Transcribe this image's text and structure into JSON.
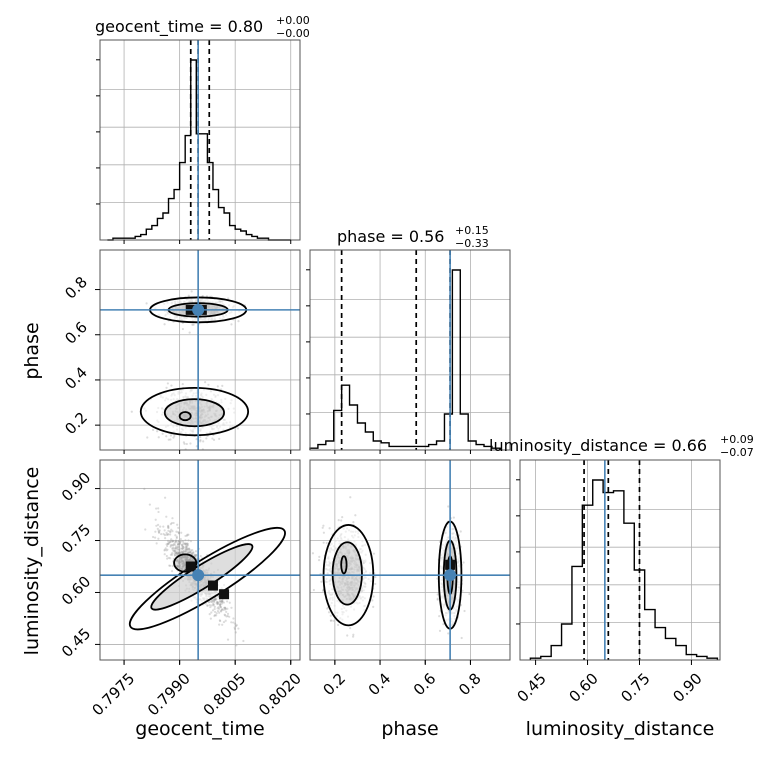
{
  "chart_data": {
    "type": "corner",
    "parameters": [
      "geocent_time",
      "phase",
      "luminosity_distance"
    ],
    "axis_labels": {
      "geocent_time": "geocent_time",
      "phase": "phase",
      "luminosity_distance": "luminosity_distance"
    },
    "titles": {
      "geocent_time": {
        "label": "geocent_time",
        "median": "0.80",
        "plus": "+0.00",
        "minus": "−0.00"
      },
      "phase": {
        "label": "phase",
        "median": "0.56",
        "plus": "+0.15",
        "minus": "−0.33"
      },
      "luminosity_distance": {
        "label": "luminosity_distance",
        "median": "0.66",
        "plus": "+0.09",
        "minus": "−0.07"
      }
    },
    "ranges": {
      "geocent_time": [
        0.79685,
        0.80225
      ],
      "phase": [
        0.09,
        0.975
      ],
      "luminosity_distance": [
        0.405,
        0.9825
      ]
    },
    "ticks": {
      "geocent_time": [
        0.7975,
        0.799,
        0.8005,
        0.802
      ],
      "phase": [
        0.2,
        0.4,
        0.6,
        0.8
      ],
      "luminosity_distance": [
        0.45,
        0.6,
        0.75,
        0.9
      ]
    },
    "tick_labels": {
      "geocent_time": [
        "0.7975",
        "0.7990",
        "0.8005",
        "0.8020"
      ],
      "phase": [
        "0.2",
        "0.4",
        "0.6",
        "0.8"
      ],
      "luminosity_distance": [
        "0.45",
        "0.60",
        "0.75",
        "0.90"
      ]
    },
    "truths": {
      "geocent_time": 0.7995,
      "phase": 0.71,
      "luminosity_distance": 0.65
    },
    "quantiles": {
      "geocent_time": [
        0.7993,
        0.7995,
        0.7998
      ],
      "phase": [
        0.23,
        0.56,
        0.71
      ],
      "luminosity_distance": [
        0.59,
        0.66,
        0.75
      ]
    },
    "histograms": {
      "geocent_time": {
        "bin_edges": [
          0.79705,
          0.7972,
          0.79735,
          0.7975,
          0.79765,
          0.7978,
          0.79795,
          0.7981,
          0.79825,
          0.7984,
          0.79855,
          0.7987,
          0.79885,
          0.799,
          0.79915,
          0.7993,
          0.79945,
          0.7996,
          0.79975,
          0.7999,
          0.80005,
          0.8002,
          0.80035,
          0.8005,
          0.80065,
          0.8008,
          0.80095,
          0.8011,
          0.80125,
          0.8014,
          0.80155,
          0.8017,
          0.80185,
          0.802
        ],
        "counts": [
          0,
          0.01,
          0.01,
          0.01,
          0.01,
          0.02,
          0.03,
          0.06,
          0.08,
          0.12,
          0.15,
          0.23,
          0.28,
          0.43,
          0.58,
          1.0,
          0.59,
          0.59,
          0.43,
          0.28,
          0.18,
          0.15,
          0.08,
          0.06,
          0.05,
          0.03,
          0.02,
          0.01,
          0.01,
          0,
          0,
          0,
          0
        ]
      },
      "phase": {
        "bin_edges": [
          0.09,
          0.125,
          0.16,
          0.195,
          0.23,
          0.265,
          0.3,
          0.335,
          0.37,
          0.405,
          0.44,
          0.475,
          0.51,
          0.545,
          0.58,
          0.615,
          0.65,
          0.685,
          0.72,
          0.755,
          0.79,
          0.825,
          0.86,
          0.895,
          0.93
        ],
        "counts": [
          0.01,
          0.03,
          0.05,
          0.22,
          0.36,
          0.25,
          0.15,
          0.1,
          0.05,
          0.04,
          0.02,
          0.02,
          0.02,
          0.02,
          0.02,
          0.03,
          0.05,
          0.2,
          1.0,
          0.2,
          0.05,
          0.03,
          0.02,
          0.01
        ]
      },
      "luminosity_distance": {
        "bin_edges": [
          0.435,
          0.465,
          0.495,
          0.525,
          0.555,
          0.585,
          0.615,
          0.645,
          0.675,
          0.705,
          0.735,
          0.765,
          0.795,
          0.825,
          0.855,
          0.885,
          0.915,
          0.945,
          0.975
        ],
        "counts": [
          0.01,
          0.02,
          0.08,
          0.2,
          0.52,
          0.86,
          1.0,
          0.93,
          0.94,
          0.76,
          0.5,
          0.28,
          0.18,
          0.12,
          0.08,
          0.03,
          0.02,
          0.01
        ]
      }
    },
    "samples": {
      "phase_vs_geocent_time": {
        "clusters": [
          {
            "x": 0.7995,
            "y": 0.71,
            "sx": 0.0004,
            "sy": 0.025,
            "n": 600,
            "rho": 0
          },
          {
            "x": 0.7994,
            "y": 0.25,
            "sx": 0.00045,
            "sy": 0.06,
            "n": 500,
            "rho": 0
          }
        ],
        "contours": [
          {
            "cx": 0.7995,
            "cy": 0.71,
            "rx": 0.0013,
            "ry": 0.055,
            "rot": 0
          },
          {
            "cx": 0.7995,
            "cy": 0.71,
            "rx": 0.0008,
            "ry": 0.03,
            "rot": 0
          },
          {
            "cx": 0.7994,
            "cy": 0.26,
            "rx": 0.00145,
            "ry": 0.105,
            "rot": 0
          },
          {
            "cx": 0.7994,
            "cy": 0.255,
            "rx": 0.0008,
            "ry": 0.06,
            "rot": 0
          },
          {
            "cx": 0.79915,
            "cy": 0.24,
            "rx": 0.00015,
            "ry": 0.018,
            "rot": 0
          }
        ],
        "density_marks": [
          {
            "x": 0.7993,
            "y": 0.71
          },
          {
            "x": 0.7996,
            "y": 0.71
          }
        ]
      },
      "luminosity_distance_vs_geocent_time": {
        "clusters": [
          {
            "x": 0.7994,
            "y": 0.66,
            "sx": 0.0004,
            "sy": 0.06,
            "n": 1100,
            "rho": -0.85
          }
        ],
        "contours": [
          {
            "cx": 0.79975,
            "cy": 0.64,
            "rx": 0.00245,
            "ry": 0.055,
            "rot": -32
          },
          {
            "cx": 0.7996,
            "cy": 0.645,
            "rx": 0.0016,
            "ry": 0.032,
            "rot": -32
          },
          {
            "cx": 0.79915,
            "cy": 0.685,
            "rx": 0.0003,
            "ry": 0.025,
            "rot": 0
          }
        ],
        "density_marks": [
          {
            "x": 0.7993,
            "y": 0.675
          },
          {
            "x": 0.7999,
            "y": 0.62
          },
          {
            "x": 0.8002,
            "y": 0.595
          }
        ]
      },
      "luminosity_distance_vs_phase": {
        "clusters": [
          {
            "x": 0.25,
            "y": 0.66,
            "sx": 0.05,
            "sy": 0.06,
            "n": 650,
            "rho": 0
          },
          {
            "x": 0.71,
            "y": 0.65,
            "sx": 0.02,
            "sy": 0.06,
            "n": 750,
            "rho": 0
          }
        ],
        "contours": [
          {
            "cx": 0.26,
            "cy": 0.65,
            "rx": 0.11,
            "ry": 0.145,
            "rot": 0
          },
          {
            "cx": 0.255,
            "cy": 0.655,
            "rx": 0.065,
            "ry": 0.09,
            "rot": 0
          },
          {
            "cx": 0.24,
            "cy": 0.68,
            "rx": 0.012,
            "ry": 0.025,
            "rot": 0
          },
          {
            "cx": 0.71,
            "cy": 0.65,
            "rx": 0.05,
            "ry": 0.155,
            "rot": 0
          },
          {
            "cx": 0.71,
            "cy": 0.65,
            "rx": 0.028,
            "ry": 0.1,
            "rot": 0
          },
          {
            "cx": 0.71,
            "cy": 0.65,
            "rx": 0.012,
            "ry": 0.055,
            "rot": 0
          }
        ],
        "density_marks": [
          {
            "x": 0.71,
            "y": 0.68
          }
        ]
      }
    },
    "grid": true,
    "colors": {
      "truth": "#4682b4",
      "hist": "#000000",
      "samples": "#9a9a9a",
      "grid": "#b0b0b0",
      "frame": "#555555"
    }
  }
}
